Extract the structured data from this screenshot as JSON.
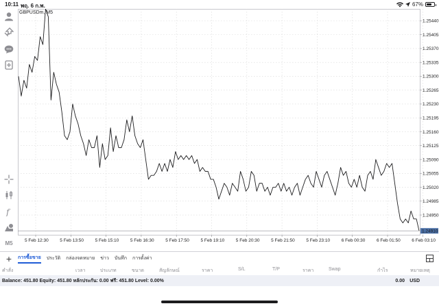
{
  "status_bar": {
    "time": "10:11",
    "date": "พฤ. 6 ก.พ.",
    "battery": "67%",
    "battery_level": 0.67
  },
  "left_tools": [
    {
      "name": "account-icon"
    },
    {
      "name": "trade-icon"
    },
    {
      "name": "chat-icon"
    },
    {
      "name": "add-chart-icon"
    },
    {
      "name": "crosshair-icon"
    },
    {
      "name": "candles-icon"
    },
    {
      "name": "indicators-icon"
    },
    {
      "name": "objects-icon"
    },
    {
      "name": "timeframe-label",
      "label": "M5"
    }
  ],
  "chart": {
    "symbol_label": "GBPUSDm, M5",
    "current_price_label": "1.24910",
    "price_ticks": [
      "1.25440",
      "1.25405",
      "1.25370",
      "1.25335",
      "1.25300",
      "1.25265",
      "1.25230",
      "1.25195",
      "1.25160",
      "1.25125",
      "1.25090",
      "1.25055",
      "1.25020",
      "1.24985",
      "1.24950"
    ],
    "time_labels": [
      "5 Feb 12:30",
      "5 Feb 13:50",
      "5 Feb 15:10",
      "5 Feb 16:30",
      "5 Feb 17:50",
      "5 Feb 19:10",
      "5 Feb 20:30",
      "5 Feb 21:50",
      "5 Feb 23:10",
      "6 Feb 00:30",
      "6 Feb 01:50",
      "6 Feb 03:10"
    ]
  },
  "chart_data": {
    "type": "line",
    "title": "GBPUSDm, M5",
    "ylim": [
      1.249,
      1.2547
    ],
    "grid": true,
    "y": [
      1.253,
      1.2525,
      1.2529,
      1.2527,
      1.2533,
      1.2531,
      1.2535,
      1.2534,
      1.254,
      1.2538,
      1.2547,
      1.2545,
      1.2524,
      1.2531,
      1.2528,
      1.2526,
      1.2521,
      1.2515,
      1.2514,
      1.2516,
      1.2523,
      1.252,
      1.2518,
      1.2515,
      1.2513,
      1.251,
      1.2514,
      1.2512,
      1.2512,
      1.2515,
      1.2507,
      1.2513,
      1.2509,
      1.251,
      1.2517,
      1.2511,
      1.2515,
      1.2512,
      1.2512,
      1.2514,
      1.2519,
      1.2516,
      1.252,
      1.2515,
      1.2513,
      1.2512,
      1.2514,
      1.2509,
      1.2504,
      1.2505,
      1.2505,
      1.2506,
      1.2508,
      1.2506,
      1.2508,
      1.2506,
      1.2509,
      1.2507,
      1.2511,
      1.2509,
      1.251,
      1.2509,
      1.251,
      1.2509,
      1.251,
      1.2508,
      1.2509,
      1.2506,
      1.2507,
      1.2506,
      1.2506,
      1.2504,
      1.2504,
      1.2502,
      1.2499,
      1.2501,
      1.2503,
      1.2502,
      1.25,
      1.2503,
      1.2502,
      1.2501,
      1.2506,
      1.2504,
      1.2501,
      1.2502,
      1.2506,
      1.2505,
      1.2501,
      1.2503,
      1.2503,
      1.2501,
      1.2502,
      1.25,
      1.2502,
      1.2502,
      1.2503,
      1.2501,
      1.2503,
      1.2501,
      1.2502,
      1.25,
      1.2502,
      1.2503,
      1.25,
      1.2502,
      1.2504,
      1.2505,
      1.2503,
      1.2502,
      1.2506,
      1.2504,
      1.2502,
      1.2505,
      1.2506,
      1.2504,
      1.2502,
      1.25,
      1.2503,
      1.2507,
      1.2505,
      1.2506,
      1.2503,
      1.2502,
      1.2504,
      1.2502,
      1.2505,
      1.2502,
      1.2501,
      1.2505,
      1.2506,
      1.2504,
      1.2509,
      1.2507,
      1.2505,
      1.2506,
      1.2508,
      1.2507,
      1.2508,
      1.2503,
      1.2498,
      1.2494,
      1.2493,
      1.2494,
      1.2493,
      1.2496,
      1.2494,
      1.2494,
      1.2491
    ]
  },
  "tabs": [
    {
      "label": "การซื้อขาย",
      "active": true
    },
    {
      "label": "ประวัติ",
      "active": false
    },
    {
      "label": "กล่องจดหมาย",
      "active": false
    },
    {
      "label": "ข่าว",
      "active": false
    },
    {
      "label": "บันทึก",
      "active": false
    },
    {
      "label": "การตั้งค่า",
      "active": false
    }
  ],
  "columns": [
    "คำสั่ง",
    "เวลา",
    "ประเภท",
    "ขนาด",
    "สัญลักษณ์",
    "ราคา",
    "S/L",
    "T/P",
    "ราคา",
    "Swap",
    "กำไร",
    "หมายเหตุ"
  ],
  "balance": {
    "text": "Balance: 451.80 Equity: 451.80 หลักประกัน: 0.00 ฟรี: 451.80 Level: 0.00%",
    "profit": "0.00",
    "currency": "USD"
  }
}
